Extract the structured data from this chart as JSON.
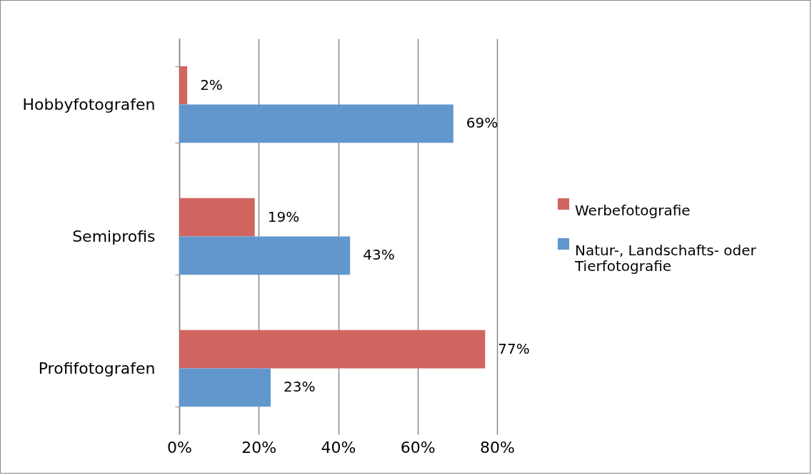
{
  "chart_data": {
    "type": "bar",
    "orientation": "horizontal",
    "categories": [
      "Hobbyfotografen",
      "Semiprofis",
      "Profifotografen"
    ],
    "series": [
      {
        "name": "Werbefotografie",
        "color": "#d0665f",
        "values": [
          2,
          19,
          77
        ],
        "value_labels": [
          "2%",
          "19%",
          "77%"
        ]
      },
      {
        "name": "Natur-, Landschafts- oder Tierfotografie",
        "color": "#6297cd",
        "values": [
          69,
          43,
          23
        ],
        "value_labels": [
          "69%",
          "43%",
          "23%"
        ]
      }
    ],
    "xlim": [
      0,
      80
    ],
    "xticks": [
      {
        "value": 0,
        "label": "0%"
      },
      {
        "value": 20,
        "label": "20%"
      },
      {
        "value": 40,
        "label": "40%"
      },
      {
        "value": 60,
        "label": "60%"
      },
      {
        "value": 80,
        "label": "80%"
      }
    ],
    "grid": "x",
    "legend": "right"
  }
}
